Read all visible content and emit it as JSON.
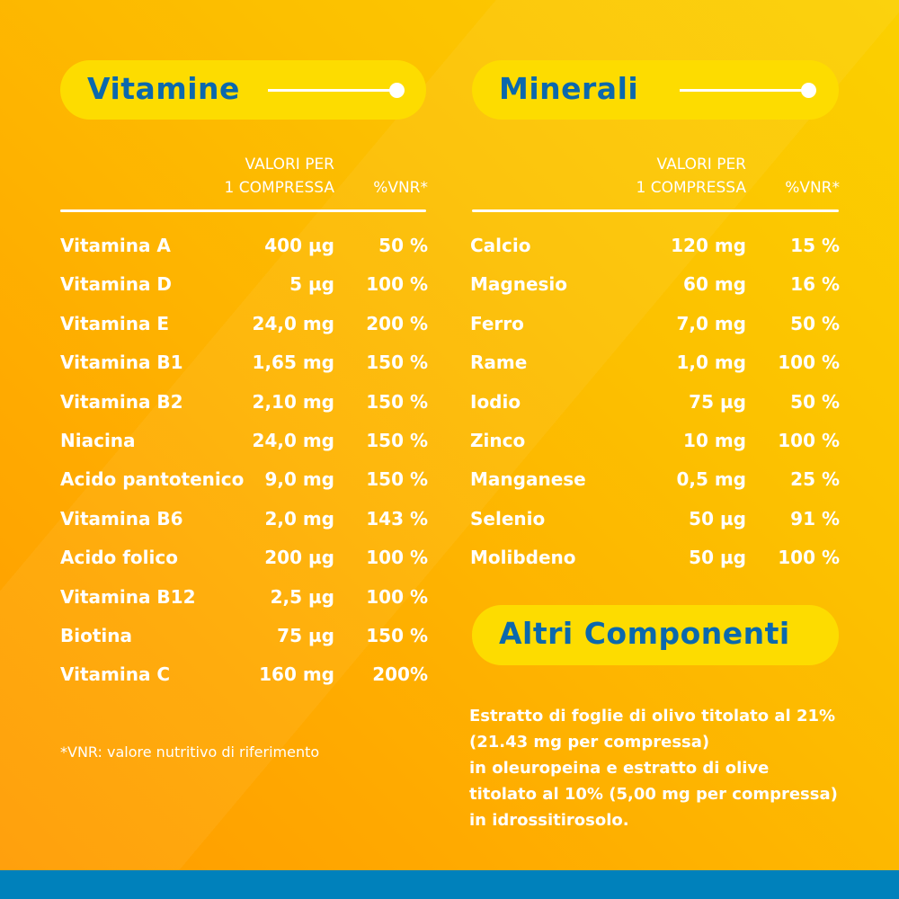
{
  "colors": {
    "accent_blue": "#0b68ad",
    "pill_yellow": "#fddc00",
    "bottom_bar": "#0081bb"
  },
  "vitamine": {
    "title": "Vitamine",
    "header_value_1": "VALORI PER",
    "header_value_2": "1 COMPRESSA",
    "header_pct": "%VNR*",
    "rows": [
      {
        "name": "Vitamina A",
        "value": "400 µg",
        "pct": "50 %"
      },
      {
        "name": "Vitamina D",
        "value": "5 µg",
        "pct": "100 %"
      },
      {
        "name": "Vitamina E",
        "value": "24,0 mg",
        "pct": "200 %"
      },
      {
        "name": "Vitamina B1",
        "value": "1,65 mg",
        "pct": "150 %"
      },
      {
        "name": "Vitamina B2",
        "value": "2,10 mg",
        "pct": "150 %"
      },
      {
        "name": "Niacina",
        "value": "24,0 mg",
        "pct": "150 %"
      },
      {
        "name": "Acido pantotenico",
        "value": "9,0 mg",
        "pct": "150 %"
      },
      {
        "name": "Vitamina B6",
        "value": "2,0 mg",
        "pct": "143 %"
      },
      {
        "name": "Acido folico",
        "value": "200 µg",
        "pct": "100 %"
      },
      {
        "name": "Vitamina B12",
        "value": "2,5 µg",
        "pct": "100 %"
      },
      {
        "name": "Biotina",
        "value": "75 µg",
        "pct": "150 %"
      },
      {
        "name": "Vitamina C",
        "value": "160 mg",
        "pct": "200%"
      }
    ],
    "footnote": "*VNR: valore nutritivo di riferimento"
  },
  "minerali": {
    "title": "Minerali",
    "header_value_1": "VALORI PER",
    "header_value_2": "1 COMPRESSA",
    "header_pct": "%VNR*",
    "rows": [
      {
        "name": "Calcio",
        "value": "120 mg",
        "pct": "15 %"
      },
      {
        "name": "Magnesio",
        "value": "60 mg",
        "pct": "16 %"
      },
      {
        "name": "Ferro",
        "value": "7,0 mg",
        "pct": "50 %"
      },
      {
        "name": "Rame",
        "value": "1,0 mg",
        "pct": "100 %"
      },
      {
        "name": "Iodio",
        "value": "75 µg",
        "pct": "50 %"
      },
      {
        "name": "Zinco",
        "value": "10 mg",
        "pct": "100 %"
      },
      {
        "name": "Manganese",
        "value": "0,5 mg",
        "pct": "25 %"
      },
      {
        "name": "Selenio",
        "value": "50 µg",
        "pct": "91 %"
      },
      {
        "name": "Molibdeno",
        "value": "50 µg",
        "pct": "100 %"
      }
    ]
  },
  "altri": {
    "title": "Altri Componenti",
    "lines": [
      "Estratto di foglie di olivo titolato al 21%",
      "(21.43 mg per compressa)",
      "in oleuropeina e estratto di olive",
      "titolato al 10% (5,00 mg per compressa)",
      "in idrossitirosolo."
    ]
  }
}
